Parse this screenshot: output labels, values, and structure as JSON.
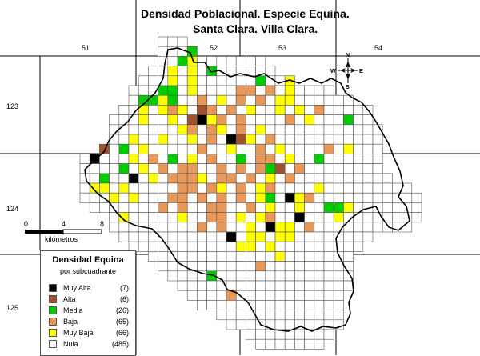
{
  "title": "Densidad Poblacional.  Especie Equina.",
  "subtitle": "Santa Clara. Villa Clara.",
  "grid_labels_top": [
    "51",
    "52",
    "53",
    "54"
  ],
  "grid_labels_left": [
    "123",
    "124",
    "125"
  ],
  "compass": {
    "n": "N",
    "s": "S",
    "e": "E",
    "w": "W"
  },
  "scale": {
    "ticks": [
      "0",
      "4",
      "8"
    ],
    "unit": "kilómetros"
  },
  "legend": {
    "title": "Densidad Equina",
    "subtitle": "por subcuadrante",
    "items": [
      {
        "name": "Muy Alta",
        "count": "(7)",
        "color": "#000000"
      },
      {
        "name": "Alta",
        "count": "(6)",
        "color": "#a0522d"
      },
      {
        "name": "Media",
        "count": "(26)",
        "color": "#00cc00"
      },
      {
        "name": "Baja",
        "count": "(65)",
        "color": "#e8995a"
      },
      {
        "name": "Muy Baja",
        "count": "(66)",
        "color": "#ffff00"
      },
      {
        "name": "Nula",
        "count": "(485)",
        "color": "#ffffff"
      }
    ]
  }
}
